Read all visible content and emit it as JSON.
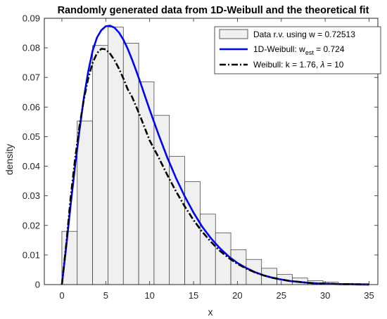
{
  "chart_data": {
    "type": "bar",
    "title": "Randomly generated data from 1D-Weibull and the theoretical fit",
    "xlabel": "x",
    "ylabel": "density",
    "xlim": [
      -2,
      36
    ],
    "ylim": [
      0,
      0.09
    ],
    "xticks": [
      "0",
      "5",
      "10",
      "15",
      "20",
      "25",
      "30",
      "35"
    ],
    "xtick_values": [
      0,
      5,
      10,
      15,
      20,
      25,
      30,
      35
    ],
    "yticks": [
      "0",
      "0.01",
      "0.02",
      "0.03",
      "0.04",
      "0.05",
      "0.06",
      "0.07",
      "0.08",
      "0.09"
    ],
    "ytick_values": [
      0,
      0.01,
      0.02,
      0.03,
      0.04,
      0.05,
      0.06,
      0.07,
      0.08,
      0.09
    ],
    "grid": false,
    "legend_position": "top-right",
    "histogram": {
      "name": "Data r.v. using w = 0.72513",
      "bin_edges": [
        0,
        1.75,
        3.5,
        5.25,
        7,
        8.75,
        10.5,
        12.25,
        14,
        15.75,
        17.5,
        19.25,
        21,
        22.75,
        24.5,
        26.25,
        28,
        29.75,
        31.5,
        33.25,
        35
      ],
      "values": [
        0.018,
        0.0553,
        0.0808,
        0.087,
        0.0816,
        0.0685,
        0.0572,
        0.0433,
        0.0348,
        0.0238,
        0.0175,
        0.0118,
        0.0085,
        0.0055,
        0.0034,
        0.0022,
        0.0013,
        0.0008,
        0.0004,
        0.0003
      ],
      "fill": "#f0f0f0",
      "stroke": "#333333"
    },
    "series": [
      {
        "name_main": "1D-Weibull: w",
        "name_sub": "est",
        "name_tail": " = 0.724",
        "color": "#0000ff",
        "dash": "solid",
        "x": [
          0,
          0.5,
          1,
          1.5,
          2,
          2.5,
          3,
          3.5,
          4,
          4.5,
          5,
          5.5,
          6,
          6.5,
          7,
          7.5,
          8,
          8.5,
          9,
          9.5,
          10,
          11,
          12,
          13,
          14,
          15,
          16,
          17,
          18,
          19,
          20,
          21,
          22,
          23,
          24,
          25,
          26,
          27,
          28,
          29,
          30,
          31,
          32,
          33,
          34,
          35
        ],
        "y": [
          0,
          0.013,
          0.027,
          0.04,
          0.052,
          0.063,
          0.072,
          0.079,
          0.0835,
          0.086,
          0.0873,
          0.0875,
          0.0868,
          0.0852,
          0.0828,
          0.0797,
          0.076,
          0.072,
          0.0678,
          0.0634,
          0.0591,
          0.0508,
          0.043,
          0.036,
          0.0298,
          0.0243,
          0.0195,
          0.0156,
          0.0123,
          0.0095,
          0.0073,
          0.0056,
          0.0042,
          0.0031,
          0.0023,
          0.0017,
          0.0012,
          0.0009,
          0.0006,
          0.0004,
          0.0003,
          0.0002,
          0.0001,
          0.0001,
          0,
          0
        ]
      },
      {
        "name_main": "Weibull: k = 1.76, ",
        "name_lambda": "λ",
        "name_tail": " = 10",
        "color": "#000000",
        "dash": "dashdot",
        "x": [
          0,
          0.5,
          1,
          1.5,
          2,
          2.5,
          3,
          3.5,
          4,
          4.5,
          5,
          5.5,
          6,
          6.5,
          7,
          7.5,
          8,
          8.5,
          9,
          9.5,
          10,
          11,
          12,
          13,
          14,
          15,
          16,
          17,
          18,
          19,
          20,
          21,
          22,
          23,
          24,
          25,
          26,
          27,
          28,
          29,
          30,
          31,
          32,
          33,
          34,
          35
        ],
        "y": [
          0,
          0.0137,
          0.0295,
          0.0424,
          0.0534,
          0.0625,
          0.0697,
          0.0749,
          0.0782,
          0.0797,
          0.0795,
          0.078,
          0.0758,
          0.073,
          0.0697,
          0.066,
          0.0634,
          0.0599,
          0.0563,
          0.0525,
          0.0487,
          0.0431,
          0.0371,
          0.0315,
          0.0264,
          0.0218,
          0.0178,
          0.0144,
          0.0114,
          0.009,
          0.007,
          0.0054,
          0.0041,
          0.0031,
          0.0023,
          0.0017,
          0.0012,
          0.0009,
          0.0006,
          0.0004,
          0.0003,
          0.0002,
          0.0001,
          0.0001,
          0.0001,
          0
        ]
      }
    ]
  }
}
